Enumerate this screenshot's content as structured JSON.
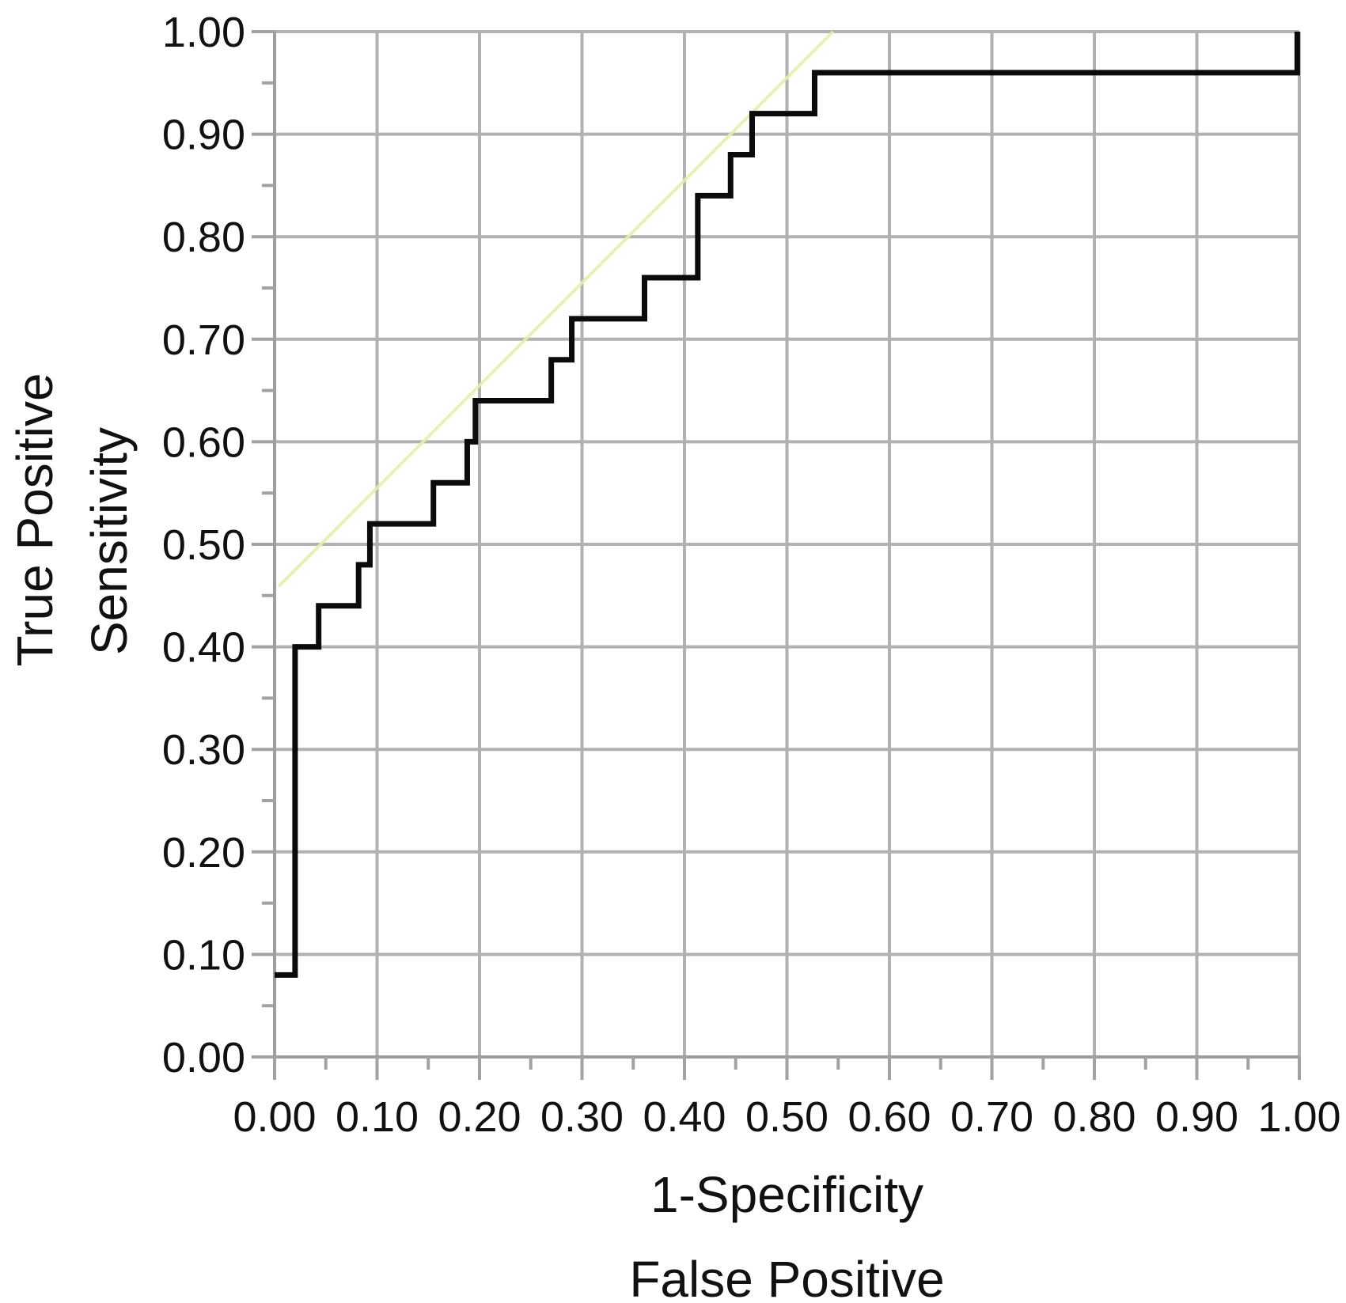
{
  "figure": {
    "background": "#ffffff"
  },
  "chart_data": {
    "type": "line",
    "subtype": "roc-step-plot",
    "title": "",
    "xlabel": "1-Specificity",
    "xlabel2": "False Positive",
    "ylabel": "True Positive",
    "ylabel2": "Sensitivity",
    "xlim": [
      0,
      1
    ],
    "ylim": [
      0,
      1
    ],
    "grid": true,
    "legend": "none",
    "x_tick_labels": [
      "0.00",
      "0.10",
      "0.20",
      "0.30",
      "0.40",
      "0.50",
      "0.60",
      "0.70",
      "0.80",
      "0.90",
      "1.00"
    ],
    "y_tick_labels": [
      "0.00",
      "0.10",
      "0.20",
      "0.30",
      "0.40",
      "0.50",
      "0.60",
      "0.70",
      "0.80",
      "0.90",
      "1.00"
    ],
    "minor_tick_interval": 0.05,
    "colors": {
      "grid": "#b1b1b1",
      "axis": "#9d9d9d",
      "tick": "#a2a2a2",
      "curve": "#0b0b0b",
      "diagonal": "#e8eeab",
      "text": "#111111"
    },
    "series": [
      {
        "name": "chance-diagonal",
        "type": "line",
        "color": "#e8eeab",
        "width": 4,
        "opacity": 0.9,
        "points": [
          [
            0.004,
            0.459
          ],
          [
            0.545,
            1.0
          ]
        ]
      },
      {
        "name": "roc-curve",
        "type": "step",
        "color": "#0b0b0b",
        "width": 7,
        "opacity": 1,
        "points": [
          [
            0.0,
            0.08
          ],
          [
            0.02,
            0.08
          ],
          [
            0.02,
            0.4
          ],
          [
            0.043,
            0.4
          ],
          [
            0.043,
            0.44
          ],
          [
            0.082,
            0.44
          ],
          [
            0.082,
            0.48
          ],
          [
            0.093,
            0.48
          ],
          [
            0.093,
            0.52
          ],
          [
            0.155,
            0.52
          ],
          [
            0.155,
            0.56
          ],
          [
            0.188,
            0.56
          ],
          [
            0.188,
            0.6
          ],
          [
            0.196,
            0.6
          ],
          [
            0.196,
            0.64
          ],
          [
            0.27,
            0.64
          ],
          [
            0.27,
            0.68
          ],
          [
            0.29,
            0.68
          ],
          [
            0.29,
            0.72
          ],
          [
            0.361,
            0.72
          ],
          [
            0.361,
            0.76
          ],
          [
            0.413,
            0.76
          ],
          [
            0.413,
            0.84
          ],
          [
            0.445,
            0.84
          ],
          [
            0.445,
            0.88
          ],
          [
            0.466,
            0.88
          ],
          [
            0.466,
            0.92
          ],
          [
            0.527,
            0.92
          ],
          [
            0.527,
            0.96
          ],
          [
            0.998,
            0.96
          ],
          [
            0.998,
            1.0
          ]
        ]
      }
    ]
  }
}
